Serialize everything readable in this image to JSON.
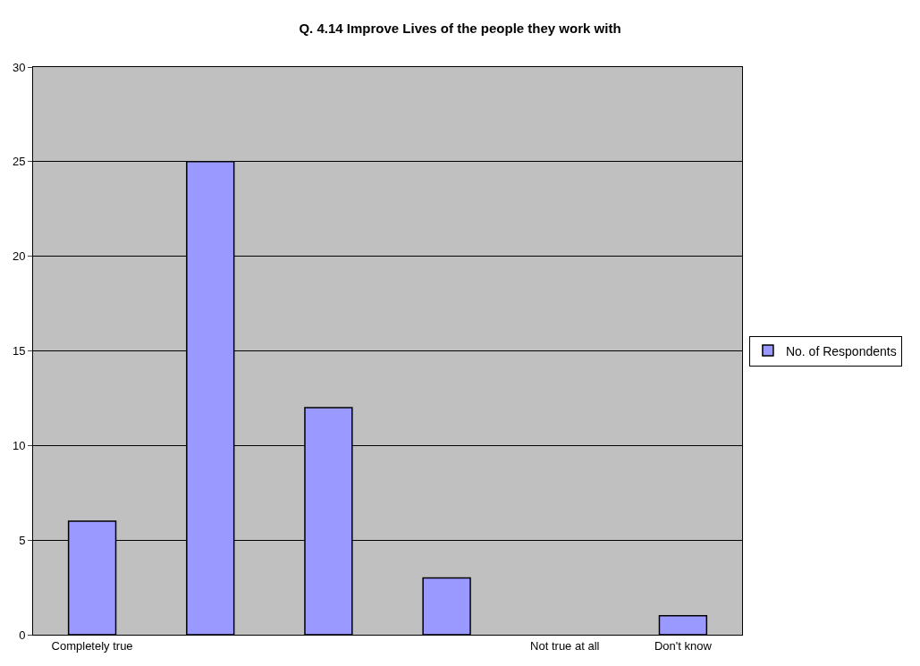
{
  "chart_data": {
    "type": "bar",
    "title": "Q. 4.14 Improve Lives of the people they work with",
    "categories": [
      "Completely true",
      null,
      null,
      null,
      "Not true at all",
      "Don't know"
    ],
    "series": [
      {
        "name": "No. of Respondents",
        "color": "#9999ff",
        "values": [
          6,
          25,
          12,
          3,
          0,
          1
        ]
      }
    ],
    "ylim": [
      0,
      30
    ],
    "yticks": [
      0,
      5,
      10,
      15,
      20,
      25,
      30
    ],
    "grid": "y",
    "legend": "right"
  }
}
